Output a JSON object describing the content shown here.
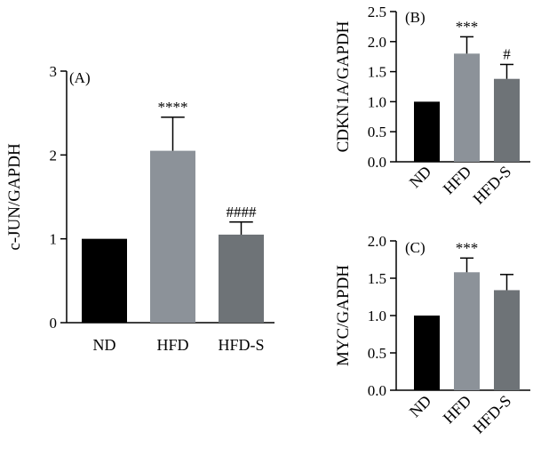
{
  "chart_data": [
    {
      "id": "A",
      "type": "bar",
      "panel_label": "(A)",
      "ylabel": "c-JUN/GAPDH",
      "ylim": [
        0,
        3
      ],
      "yticks": [
        0,
        1,
        2,
        3
      ],
      "ytick_labels": [
        "0",
        "1",
        "2",
        "3"
      ],
      "categories": [
        "ND",
        "HFD",
        "HFD-S"
      ],
      "values": [
        1.0,
        2.05,
        1.05
      ],
      "errors": [
        0,
        0.4,
        0.15
      ],
      "annotations": [
        "",
        "****",
        "####"
      ],
      "colors": [
        "#000000",
        "#8c9299",
        "#6e7377"
      ],
      "xtick_rotation": 0
    },
    {
      "id": "B",
      "type": "bar",
      "panel_label": "(B)",
      "ylabel": "CDKN1A/GAPDH",
      "ylim": [
        0,
        2.5
      ],
      "yticks": [
        0,
        0.5,
        1.0,
        1.5,
        2.0,
        2.5
      ],
      "ytick_labels": [
        "0.0",
        "0.5",
        "1.0",
        "1.5",
        "2.0",
        "2.5"
      ],
      "categories": [
        "ND",
        "HFD",
        "HFD-S"
      ],
      "values": [
        1.0,
        1.8,
        1.38
      ],
      "errors": [
        0,
        0.28,
        0.24
      ],
      "annotations": [
        "",
        "***",
        "#"
      ],
      "colors": [
        "#000000",
        "#8c9299",
        "#6e7377"
      ],
      "xtick_rotation": -45
    },
    {
      "id": "C",
      "type": "bar",
      "panel_label": "(C)",
      "ylabel": "MYC/GAPDH",
      "ylim": [
        0,
        2.0
      ],
      "yticks": [
        0,
        0.5,
        1.0,
        1.5,
        2.0
      ],
      "ytick_labels": [
        "0.0",
        "0.5",
        "1.0",
        "1.5",
        "2.0"
      ],
      "categories": [
        "ND",
        "HFD",
        "HFD-S"
      ],
      "values": [
        1.0,
        1.58,
        1.34
      ],
      "errors": [
        0,
        0.19,
        0.21
      ],
      "annotations": [
        "",
        "***",
        ""
      ],
      "colors": [
        "#000000",
        "#8c9299",
        "#6e7377"
      ],
      "xtick_rotation": -45
    }
  ]
}
